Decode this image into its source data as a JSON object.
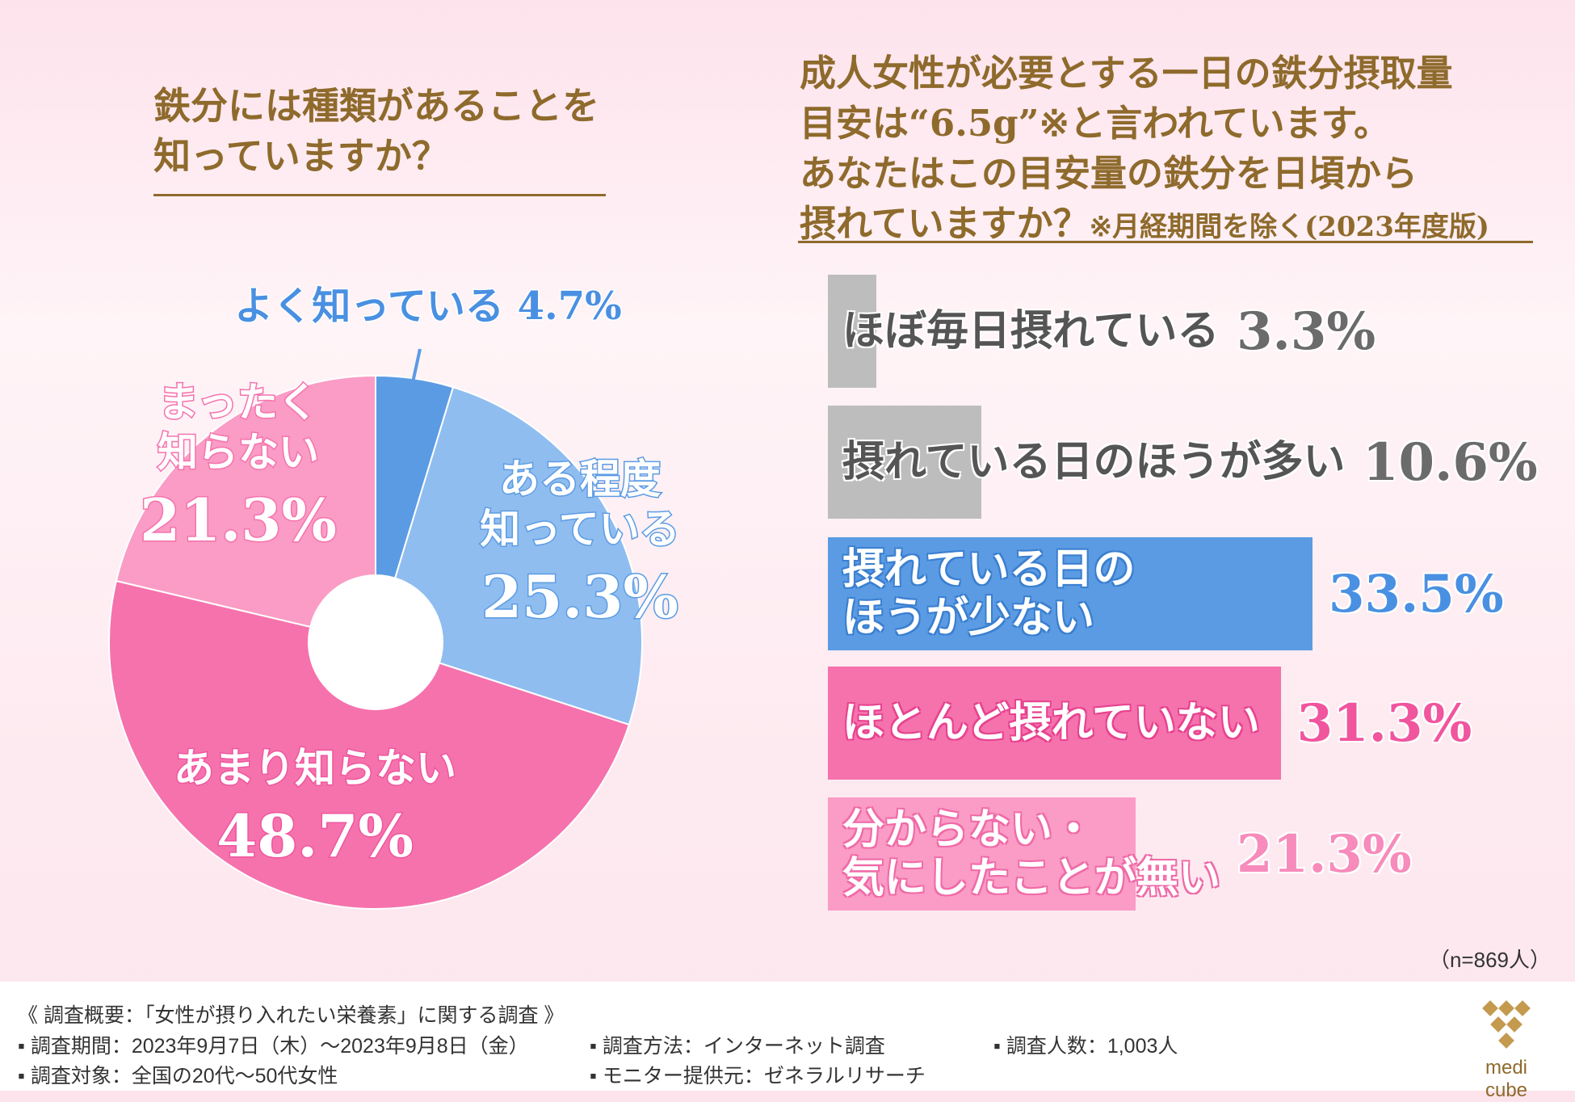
{
  "left_question": {
    "title_line1": "鉄分には種類があることを",
    "title_line2": "知っていますか？"
  },
  "right_question": {
    "title_line1": "成人女性が必要とする一日の鉄分摂取量",
    "title_line2": "目安は“6.5g”※と言われています。",
    "title_line3": "あなたはこの目安量の鉄分を日頃から",
    "title_line4": "摂れていますか？",
    "title_note": "※月経期間を除く(2023年度版)"
  },
  "colors": {
    "title": "#8e6a2c",
    "pie": [
      "#5b9be3",
      "#8fbdf0",
      "#f572ad",
      "#fa9cc5"
    ],
    "bars": [
      "#bdbdbd",
      "#bdbdbd",
      "#5b9be3",
      "#f572ad",
      "#fa9cc5"
    ]
  },
  "chart_data": [
    {
      "type": "pie",
      "title": "鉄分には種類があることを知っていますか？",
      "slices": [
        {
          "label": "よく知っている",
          "value": 4.7,
          "pct_text": "4.7%"
        },
        {
          "label": "ある程度\n知っている",
          "value": 25.3,
          "pct_text": "25.3%"
        },
        {
          "label": "あまり知らない",
          "value": 48.7,
          "pct_text": "48.7%"
        },
        {
          "label": "まったく\n知らない",
          "value": 21.3,
          "pct_text": "21.3%"
        }
      ]
    },
    {
      "type": "bar",
      "orientation": "horizontal",
      "title": "成人女性が必要とする一日の鉄分摂取量目安は“6.5g”※と言われています。あなたはこの目安量の鉄分を日頃から摂れていますか？",
      "categories": [
        "ほぼ毎日摂れている",
        "摂れている日のほうが多い",
        "摂れている日の\nほうが少ない",
        "ほとんど摂れていない",
        "分からない・\n気にしたことが無い"
      ],
      "values": [
        3.3,
        10.6,
        33.5,
        31.3,
        21.3
      ],
      "pct_texts": [
        "3.3%",
        "10.6%",
        "33.5%",
        "31.3%",
        "21.3%"
      ]
    }
  ],
  "sample_note": "（n=869人）",
  "footer": {
    "heading": "《 調査概要：「女性が摂り入れたい栄養素」に関する調査 》",
    "period": "調査期間：2023年9月7日（木）～2023年9月8日（金）",
    "method": "調査方法：インターネット調査",
    "count": "調査人数：1,003人",
    "target": "調査対象：全国の20代～50代女性",
    "monitor": "モニター提供元：ゼネラルリサーチ",
    "logo": "medi cube"
  }
}
